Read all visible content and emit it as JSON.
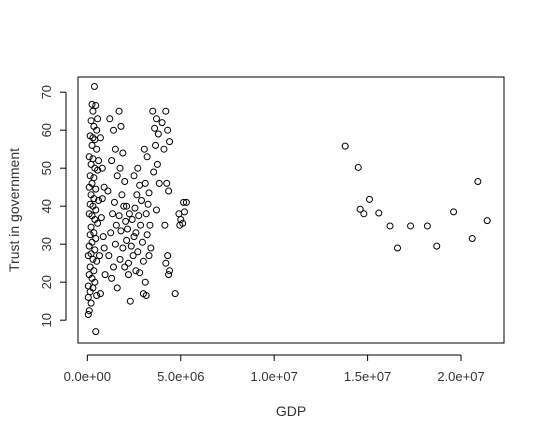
{
  "chart_data": {
    "type": "scatter",
    "title": "",
    "xlabel": "GDP",
    "ylabel": "Trust in government",
    "xlim": [
      -500000,
      22300000
    ],
    "ylim": [
      4,
      74
    ],
    "x_ticks": [
      {
        "value": 0,
        "label": "0.0e+00"
      },
      {
        "value": 5000000,
        "label": "5.0e+06"
      },
      {
        "value": 10000000,
        "label": "1.0e+07"
      },
      {
        "value": 15000000,
        "label": "1.5e+07"
      },
      {
        "value": 20000000,
        "label": "2.0e+07"
      }
    ],
    "y_ticks": [
      {
        "value": 10,
        "label": "10"
      },
      {
        "value": 20,
        "label": "20"
      },
      {
        "value": 30,
        "label": "30"
      },
      {
        "value": 40,
        "label": "40"
      },
      {
        "value": 50,
        "label": "50"
      },
      {
        "value": 60,
        "label": "60"
      },
      {
        "value": 70,
        "label": "70"
      }
    ],
    "grid": false,
    "marker": "open-circle",
    "marker_color": "#000000",
    "series": [
      {
        "points": [
          [
            380000,
            71.5
          ],
          [
            250000,
            66.8
          ],
          [
            450000,
            66.5
          ],
          [
            300000,
            65
          ],
          [
            550000,
            63
          ],
          [
            200000,
            62.5
          ],
          [
            350000,
            61
          ],
          [
            500000,
            60
          ],
          [
            150000,
            58.5
          ],
          [
            300000,
            58
          ],
          [
            400000,
            57.5
          ],
          [
            250000,
            56
          ],
          [
            500000,
            55
          ],
          [
            100000,
            53
          ],
          [
            300000,
            52.5
          ],
          [
            600000,
            52
          ],
          [
            200000,
            51
          ],
          [
            400000,
            50
          ],
          [
            550000,
            49.5
          ],
          [
            150000,
            48
          ],
          [
            350000,
            47.5
          ],
          [
            250000,
            46
          ],
          [
            100000,
            45
          ],
          [
            450000,
            44.5
          ],
          [
            200000,
            43
          ],
          [
            350000,
            42
          ],
          [
            600000,
            41.5
          ],
          [
            150000,
            40.5
          ],
          [
            300000,
            40
          ],
          [
            450000,
            39
          ],
          [
            100000,
            38
          ],
          [
            250000,
            37.5
          ],
          [
            400000,
            36.5
          ],
          [
            550000,
            35.5
          ],
          [
            200000,
            34.5
          ],
          [
            350000,
            33
          ],
          [
            150000,
            32.5
          ],
          [
            450000,
            31.5
          ],
          [
            250000,
            30.5
          ],
          [
            100000,
            29.5
          ],
          [
            400000,
            28.5
          ],
          [
            200000,
            27.5
          ],
          [
            50000,
            27
          ],
          [
            300000,
            26
          ],
          [
            500000,
            25.5
          ],
          [
            150000,
            24
          ],
          [
            350000,
            23
          ],
          [
            100000,
            22
          ],
          [
            250000,
            21
          ],
          [
            400000,
            20
          ],
          [
            50000,
            19
          ],
          [
            300000,
            18.5
          ],
          [
            150000,
            17.5
          ],
          [
            500000,
            16.5
          ],
          [
            50000,
            16
          ],
          [
            200000,
            14.5
          ],
          [
            100000,
            12.5
          ],
          [
            50000,
            11.5
          ],
          [
            450000,
            7
          ],
          [
            700000,
            58
          ],
          [
            800000,
            50
          ],
          [
            900000,
            45
          ],
          [
            750000,
            37
          ],
          [
            850000,
            32
          ],
          [
            650000,
            27
          ],
          [
            950000,
            22
          ],
          [
            700000,
            17
          ],
          [
            800000,
            42
          ],
          [
            900000,
            29
          ],
          [
            1200000,
            63
          ],
          [
            1400000,
            60
          ],
          [
            1500000,
            55
          ],
          [
            1300000,
            52
          ],
          [
            1600000,
            48
          ],
          [
            1100000,
            44
          ],
          [
            1450000,
            41
          ],
          [
            1350000,
            38
          ],
          [
            1550000,
            35
          ],
          [
            1250000,
            33
          ],
          [
            1500000,
            30
          ],
          [
            1150000,
            27
          ],
          [
            1400000,
            24
          ],
          [
            1300000,
            21
          ],
          [
            1600000,
            18.5
          ],
          [
            1700000,
            65
          ],
          [
            1800000,
            61
          ],
          [
            1900000,
            54
          ],
          [
            1750000,
            50
          ],
          [
            2000000,
            46.5
          ],
          [
            1850000,
            43
          ],
          [
            1950000,
            40
          ],
          [
            1700000,
            37.5
          ],
          [
            2050000,
            36
          ],
          [
            1800000,
            33.5
          ],
          [
            2100000,
            31
          ],
          [
            1900000,
            29
          ],
          [
            1750000,
            26
          ],
          [
            2000000,
            24
          ],
          [
            2200000,
            22
          ],
          [
            2300000,
            15
          ],
          [
            2100000,
            40
          ],
          [
            2250000,
            38
          ],
          [
            2400000,
            36.5
          ],
          [
            2150000,
            34
          ],
          [
            2500000,
            32
          ],
          [
            2350000,
            29.5
          ],
          [
            2450000,
            27
          ],
          [
            2200000,
            25
          ],
          [
            2600000,
            23
          ],
          [
            2700000,
            50
          ],
          [
            2500000,
            48
          ],
          [
            2800000,
            45.5
          ],
          [
            2650000,
            43
          ],
          [
            2900000,
            41.5
          ],
          [
            2550000,
            39.5
          ],
          [
            2750000,
            37.5
          ],
          [
            2850000,
            35
          ],
          [
            2600000,
            33
          ],
          [
            2950000,
            30.5
          ],
          [
            2700000,
            28
          ],
          [
            3000000,
            25.5
          ],
          [
            2800000,
            22.5
          ],
          [
            3100000,
            20
          ],
          [
            3000000,
            17
          ],
          [
            3150000,
            16.5
          ],
          [
            3050000,
            55
          ],
          [
            3200000,
            53
          ],
          [
            3100000,
            46
          ],
          [
            3300000,
            43.5
          ],
          [
            3250000,
            40.5
          ],
          [
            3150000,
            38
          ],
          [
            3350000,
            35
          ],
          [
            3200000,
            32.5
          ],
          [
            3400000,
            29
          ],
          [
            3300000,
            27
          ],
          [
            3500000,
            65
          ],
          [
            3700000,
            63
          ],
          [
            3600000,
            60.5
          ],
          [
            3800000,
            59
          ],
          [
            3650000,
            56
          ],
          [
            3750000,
            51
          ],
          [
            3550000,
            49
          ],
          [
            3850000,
            46
          ],
          [
            3700000,
            39
          ],
          [
            4000000,
            62
          ],
          [
            4300000,
            60
          ],
          [
            4200000,
            65
          ],
          [
            4400000,
            57
          ],
          [
            4100000,
            55
          ],
          [
            4250000,
            46
          ],
          [
            4350000,
            44
          ],
          [
            4150000,
            35
          ],
          [
            4300000,
            27
          ],
          [
            4200000,
            25
          ],
          [
            4400000,
            23
          ],
          [
            4350000,
            22
          ],
          [
            4700000,
            17
          ],
          [
            4900000,
            38
          ],
          [
            5000000,
            36.5
          ],
          [
            5100000,
            35.5
          ],
          [
            5150000,
            41
          ],
          [
            5300000,
            41
          ],
          [
            5200000,
            38.5
          ],
          [
            4950000,
            35
          ],
          [
            13800000,
            55.8
          ],
          [
            14500000,
            50.2
          ],
          [
            14600000,
            39.2
          ],
          [
            14800000,
            38
          ],
          [
            15100000,
            41.8
          ],
          [
            15600000,
            38.2
          ],
          [
            16200000,
            34.8
          ],
          [
            16600000,
            29
          ],
          [
            17300000,
            34.8
          ],
          [
            18200000,
            34.8
          ],
          [
            18700000,
            29.5
          ],
          [
            19600000,
            38.5
          ],
          [
            20600000,
            31.5
          ],
          [
            20900000,
            46.5
          ],
          [
            21400000,
            36.2
          ]
        ]
      }
    ]
  }
}
